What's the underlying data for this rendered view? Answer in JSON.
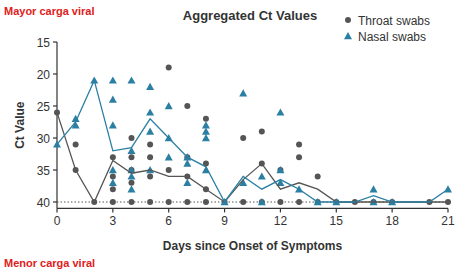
{
  "chart_data": {
    "type": "scatter",
    "title": "Aggregated Ct Values",
    "x_label": "Days since Onset of Symptoms",
    "y_label": "Ct Value",
    "annotations": [
      {
        "text": "Mayor carga viral",
        "color": "#e02020"
      },
      {
        "text": "Menor carga viral",
        "color": "#e02020"
      }
    ],
    "xlim": [
      0,
      21
    ],
    "xticks": [
      0,
      3,
      6,
      9,
      12,
      15,
      18,
      21
    ],
    "ylim": [
      41,
      15
    ],
    "yticks": [
      15,
      20,
      25,
      30,
      35,
      40
    ],
    "legend": "upper right",
    "grid": false,
    "series": [
      {
        "name": "Throat swabs",
        "type": "scatter",
        "marker": "circle",
        "color": "#555555",
        "x": [
          0,
          1,
          1,
          2,
          3,
          3,
          3,
          3,
          4,
          4,
          4,
          4,
          4,
          5,
          5,
          5,
          5,
          6,
          6,
          6,
          7,
          7,
          7,
          7,
          8,
          8,
          8,
          8,
          9,
          10,
          10,
          11,
          11,
          11,
          12,
          12,
          13,
          13,
          13,
          14,
          14,
          15,
          16,
          17,
          18,
          20,
          21
        ],
        "values": [
          26,
          31,
          35,
          40,
          33,
          36,
          38,
          40,
          30,
          33,
          35,
          37,
          40,
          31,
          33,
          36,
          40,
          19,
          35,
          40,
          25,
          33,
          36,
          40,
          27,
          34,
          38,
          40,
          40,
          30,
          40,
          29,
          34,
          40,
          35,
          40,
          31,
          33,
          40,
          36,
          40,
          40,
          40,
          40,
          40,
          40,
          40
        ]
      },
      {
        "name": "Nasal swabs",
        "type": "scatter",
        "marker": "triangle",
        "color": "#2a7fa3",
        "x": [
          0,
          1,
          1,
          2,
          3,
          3,
          3,
          3,
          3,
          4,
          4,
          4,
          4,
          4,
          5,
          5,
          5,
          5,
          6,
          6,
          6,
          7,
          7,
          7,
          8,
          8,
          8,
          8,
          9,
          10,
          10,
          11,
          11,
          12,
          12,
          12,
          13,
          14,
          15,
          17,
          17,
          18,
          21
        ],
        "values": [
          31,
          27,
          28,
          21,
          21,
          24,
          28,
          35,
          37,
          21,
          32,
          35,
          36,
          38,
          22,
          26,
          29,
          35,
          25,
          30,
          33,
          33,
          34,
          37,
          28,
          29,
          30,
          35,
          40,
          23,
          37,
          36,
          40,
          26,
          35,
          37,
          38,
          40,
          40,
          38,
          40,
          40,
          38
        ]
      },
      {
        "type": "line",
        "line_style": "solid",
        "color": "#555555",
        "x": [
          0,
          1,
          2,
          3,
          4,
          5,
          6,
          7,
          8,
          9,
          10,
          11,
          12,
          13,
          14,
          15,
          16,
          17,
          18,
          20,
          21
        ],
        "values": [
          26,
          35,
          40,
          33.5,
          35.5,
          35,
          36,
          36,
          38,
          40,
          36.5,
          34,
          38,
          37,
          38,
          40,
          40,
          40,
          40,
          40,
          40
        ]
      },
      {
        "type": "line",
        "line_style": "solid",
        "color": "#2a7fa3",
        "x": [
          0,
          1,
          2,
          3,
          4,
          5,
          6,
          7,
          8,
          9,
          10,
          11,
          12,
          13,
          14,
          15,
          16,
          17,
          18,
          19,
          20,
          21
        ],
        "values": [
          31,
          27.5,
          21,
          32,
          31.5,
          27,
          30,
          33,
          34.5,
          40,
          36,
          38,
          36.5,
          38,
          40,
          40,
          40,
          39,
          40,
          40,
          40,
          38
        ]
      }
    ]
  }
}
